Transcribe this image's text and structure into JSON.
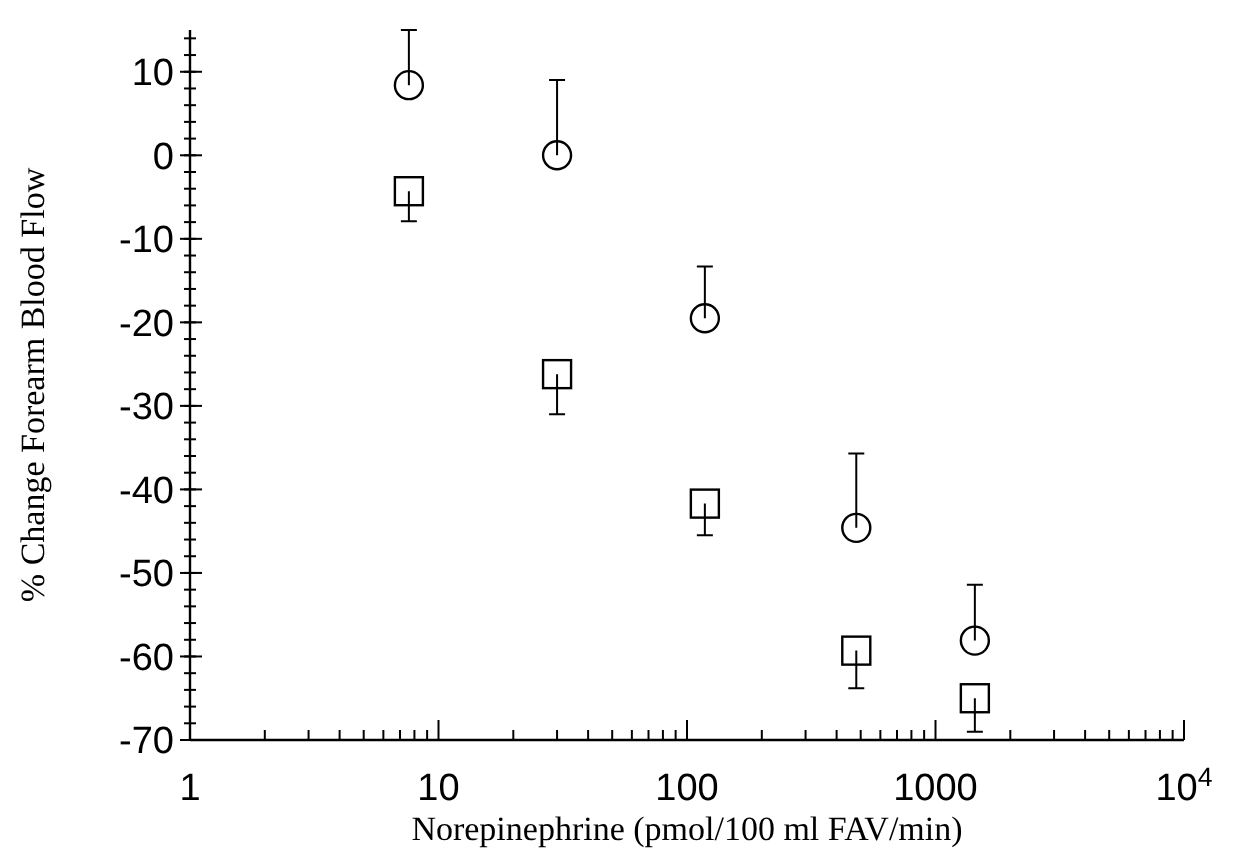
{
  "chart_data": {
    "type": "scatter",
    "xlabel": "Norepinephrine (pmol/100 ml FAV/min)",
    "ylabel": "% Change Forearm Blood Flow",
    "log": "x",
    "grid": false,
    "xlim": [
      1,
      10000
    ],
    "xticks": [
      1,
      10,
      100,
      1000,
      {
        "value": 10000,
        "label": "10$^{4}$"
      }
    ],
    "ylim": [
      -70,
      15
    ],
    "yticks": [
      -70,
      -60,
      -50,
      -40,
      -30,
      -20,
      -10,
      0,
      10
    ],
    "series": [
      {
        "color": "#000000",
        "marker": "circle",
        "x": [
          7.6,
          30,
          118,
          480,
          1440
        ],
        "values": [
          8.4,
          0,
          -19.5,
          -44.6,
          -58.1
        ],
        "errors": [
          [
            8.4,
            15.0
          ],
          [
            0,
            9.0
          ],
          [
            -19.5,
            -13.3
          ],
          [
            -44.6,
            -35.7
          ],
          [
            -58.1,
            -51.4
          ]
        ]
      },
      {
        "color": "#000000",
        "marker": "square",
        "x": [
          7.6,
          30,
          118,
          480,
          1440
        ],
        "values": [
          -4.3,
          -26.2,
          -41.7,
          -59.3,
          -65.0
        ],
        "errors": [
          [
            -7.9,
            -4.3
          ],
          [
            -31.0,
            -26.2
          ],
          [
            -45.5,
            -41.7
          ],
          [
            -63.8,
            -59.3
          ],
          [
            -69.0,
            -65.0
          ]
        ]
      }
    ]
  }
}
